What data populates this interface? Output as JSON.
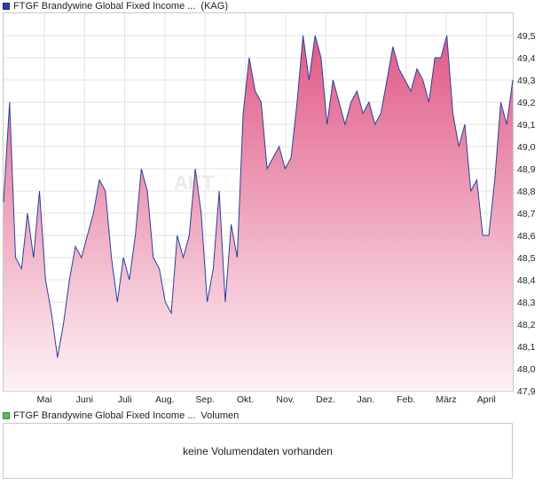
{
  "header": {
    "title": "FTGF Brandywine Global Fixed Income ...",
    "tag": "(KAG)"
  },
  "volume_panel": {
    "title": "FTGF Brandywine Global Fixed Income ...",
    "tag": "Volumen",
    "message": "keine Volumendaten vorhanden"
  },
  "watermark": "AKT",
  "colors": {
    "line": "#2b3f9e",
    "fill_top": "#e05a87",
    "fill_bottom": "#fdf2f6",
    "grid": "#e3e3e3"
  },
  "chart_data": {
    "type": "area",
    "ylim": [
      47.9,
      49.6
    ],
    "y_ticks": [
      "47,9",
      "48,0",
      "48,1",
      "48,2",
      "48,3",
      "48,4",
      "48,5",
      "48,6",
      "48,7",
      "48,8",
      "48,9",
      "49,0",
      "49,1",
      "49,2",
      "49,3",
      "49,4",
      "49,5"
    ],
    "x_ticks": [
      "Mai",
      "Juni",
      "Juli",
      "Aug.",
      "Sep.",
      "Okt.",
      "Nov.",
      "Dez.",
      "Jan.",
      "Feb.",
      "März",
      "April"
    ],
    "grid": true,
    "series": [
      {
        "values": [
          48.75,
          49.2,
          48.5,
          48.45,
          48.7,
          48.5,
          48.8,
          48.4,
          48.25,
          48.05,
          48.2,
          48.4,
          48.55,
          48.5,
          48.6,
          48.7,
          48.85,
          48.8,
          48.5,
          48.3,
          48.5,
          48.4,
          48.6,
          48.9,
          48.8,
          48.5,
          48.45,
          48.3,
          48.25,
          48.6,
          48.5,
          48.6,
          48.9,
          48.7,
          48.3,
          48.45,
          48.8,
          48.3,
          48.65,
          48.5,
          49.15,
          49.4,
          49.25,
          49.2,
          48.9,
          48.95,
          49.0,
          48.9,
          48.95,
          49.2,
          49.5,
          49.3,
          49.5,
          49.4,
          49.1,
          49.3,
          49.2,
          49.1,
          49.2,
          49.25,
          49.15,
          49.2,
          49.1,
          49.15,
          49.3,
          49.45,
          49.35,
          49.3,
          49.25,
          49.35,
          49.3,
          49.2,
          49.4,
          49.4,
          49.5,
          49.15,
          49.0,
          49.1,
          48.8,
          48.85,
          48.6,
          48.6,
          48.85,
          49.2,
          49.1,
          49.3
        ]
      }
    ]
  }
}
